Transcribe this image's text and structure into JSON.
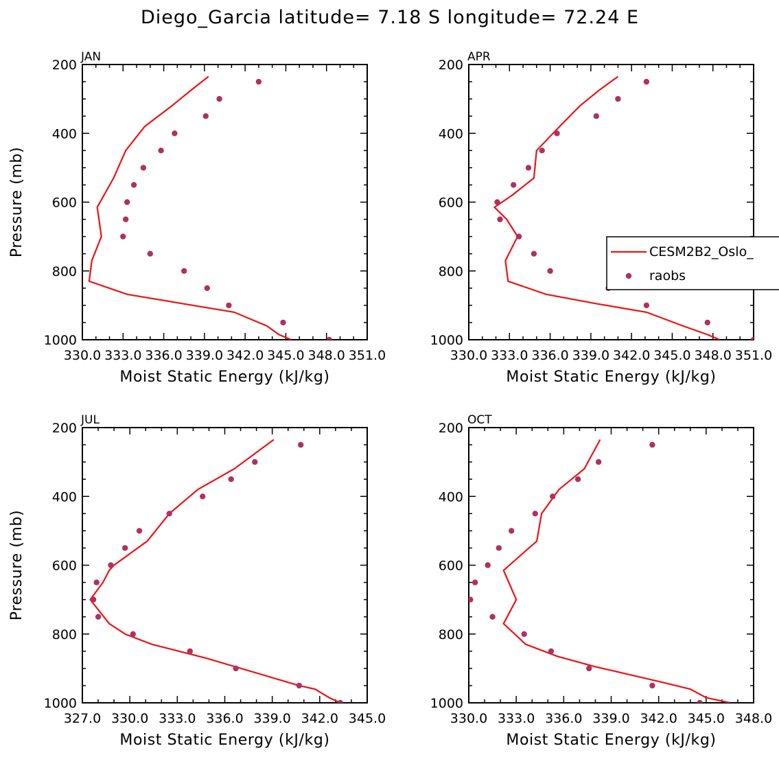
{
  "figure": {
    "title": "Diego_Garcia  latitude= 7.18 S longitude= 72.24 E"
  },
  "colors": {
    "model_line": "#ee1111",
    "obs_marker": "#b03060",
    "axis": "#000000",
    "background": "#ffffff"
  },
  "legend": {
    "model_label": "CESM2B2_Oslo_",
    "obs_label": "raobs",
    "panel": "APR",
    "placement": "right"
  },
  "chart_data": [
    {
      "type": "line",
      "panel": "JAN",
      "xlabel": "Moist Static Energy (kJ/kg)",
      "ylabel": "Pressure (mb)",
      "xlim": [
        330.0,
        351.0
      ],
      "xticks": [
        330.0,
        333.0,
        336.0,
        339.0,
        342.0,
        345.0,
        348.0,
        351.0
      ],
      "xtick_labels": [
        "330.0",
        "333.0",
        "336.0",
        "339.0",
        "342.0",
        "345.0",
        "348.0",
        "351.0"
      ],
      "ylim": [
        200,
        1000
      ],
      "yticks": [
        200,
        400,
        600,
        800,
        1000
      ],
      "ytick_labels": [
        "200",
        "400",
        "600",
        "800",
        "1000"
      ],
      "series": [
        {
          "name": "CESM2B2_Oslo_",
          "kind": "line",
          "x": [
            345.4,
            344.5,
            343.6,
            341.2,
            337.4,
            333.3,
            330.5,
            330.7,
            331.4,
            331.1,
            332.3,
            333.2,
            334.6,
            336.6,
            338.0,
            339.3
          ],
          "y": [
            1000,
            985,
            960,
            920,
            895,
            868,
            830,
            770,
            700,
            615,
            530,
            450,
            380,
            320,
            275,
            235
          ]
        },
        {
          "name": "raobs",
          "kind": "scatter",
          "x": [
            348.2,
            344.8,
            340.8,
            339.2,
            337.5,
            335.0,
            333.0,
            333.2,
            333.3,
            333.8,
            334.5,
            335.8,
            336.8,
            339.1,
            340.1,
            343.0
          ],
          "y": [
            1000,
            950,
            900,
            850,
            800,
            750,
            700,
            650,
            600,
            550,
            500,
            450,
            400,
            350,
            300,
            250
          ]
        }
      ]
    },
    {
      "type": "line",
      "panel": "APR",
      "xlabel": "Moist Static Energy (kJ/kg)",
      "ylabel": "",
      "xlim": [
        330.0,
        351.0
      ],
      "xticks": [
        330.0,
        333.0,
        336.0,
        339.0,
        342.0,
        345.0,
        348.0,
        351.0
      ],
      "xtick_labels": [
        "330.0",
        "333.0",
        "336.0",
        "339.0",
        "342.0",
        "345.0",
        "348.0",
        "351.0"
      ],
      "ylim": [
        200,
        1000
      ],
      "yticks": [
        200,
        400,
        600,
        800,
        1000
      ],
      "ytick_labels": [
        "200",
        "400",
        "600",
        "800",
        "1000"
      ],
      "series": [
        {
          "name": "CESM2B2_Oslo_",
          "kind": "line",
          "x": [
            348.5,
            347.6,
            345.8,
            343.1,
            339.4,
            335.7,
            332.9,
            332.7,
            333.6,
            332.8,
            331.9,
            333.2,
            334.8,
            335.0,
            336.7,
            338.2,
            339.6,
            341.0
          ],
          "y": [
            1000,
            985,
            960,
            920,
            895,
            868,
            830,
            770,
            700,
            650,
            615,
            580,
            530,
            450,
            380,
            320,
            275,
            235
          ]
        },
        {
          "name": "raobs",
          "kind": "scatter",
          "x": [
            351.0,
            347.6,
            343.1,
            340.3,
            336.0,
            334.8,
            333.7,
            332.3,
            332.1,
            333.3,
            334.4,
            335.4,
            336.5,
            339.4,
            341.0,
            343.1
          ],
          "y": [
            1000,
            950,
            900,
            850,
            800,
            750,
            700,
            650,
            600,
            550,
            500,
            450,
            400,
            350,
            300,
            250
          ]
        }
      ]
    },
    {
      "type": "line",
      "panel": "JUL",
      "xlabel": "Moist Static Energy (kJ/kg)",
      "ylabel": "Pressure (mb)",
      "xlim": [
        327.0,
        345.0
      ],
      "xticks": [
        327.0,
        330.0,
        333.0,
        336.0,
        339.0,
        342.0,
        345.0
      ],
      "xtick_labels": [
        "327.0",
        "330.0",
        "333.0",
        "336.0",
        "339.0",
        "342.0",
        "345.0"
      ],
      "ylim": [
        200,
        1000
      ],
      "yticks": [
        200,
        400,
        600,
        800,
        1000
      ],
      "ytick_labels": [
        "200",
        "400",
        "600",
        "800",
        "1000"
      ],
      "series": [
        {
          "name": "CESM2B2_Oslo_",
          "kind": "line",
          "x": [
            343.3,
            342.6,
            341.7,
            340.7,
            334.8,
            331.4,
            329.7,
            328.7,
            327.5,
            328.3,
            328.7,
            329.0,
            331.1,
            332.5,
            334.3,
            336.6,
            339.1
          ],
          "y": [
            1000,
            985,
            960,
            950,
            870,
            830,
            800,
            770,
            700,
            650,
            615,
            600,
            530,
            450,
            380,
            320,
            235
          ]
        },
        {
          "name": "raobs",
          "kind": "scatter",
          "x": [
            343.3,
            340.7,
            336.7,
            333.8,
            330.2,
            328.0,
            327.7,
            327.9,
            328.8,
            329.7,
            330.6,
            332.5,
            334.6,
            336.4,
            337.9,
            340.8
          ],
          "y": [
            1000,
            950,
            900,
            850,
            800,
            750,
            700,
            650,
            600,
            550,
            500,
            450,
            400,
            350,
            300,
            250
          ]
        }
      ]
    },
    {
      "type": "line",
      "panel": "OCT",
      "xlabel": "Moist Static Energy (kJ/kg)",
      "ylabel": "",
      "xlim": [
        330.0,
        348.0
      ],
      "xticks": [
        330.0,
        333.0,
        336.0,
        339.0,
        342.0,
        345.0,
        348.0
      ],
      "xtick_labels": [
        "330.0",
        "333.0",
        "336.0",
        "339.0",
        "342.0",
        "345.0",
        "348.0"
      ],
      "ylim": [
        200,
        1000
      ],
      "yticks": [
        200,
        400,
        600,
        800,
        1000
      ],
      "ytick_labels": [
        "200",
        "400",
        "600",
        "800",
        "1000"
      ],
      "series": [
        {
          "name": "CESM2B2_Oslo_",
          "kind": "line",
          "x": [
            346.5,
            345.0,
            344.0,
            342.2,
            338.0,
            335.6,
            333.6,
            332.2,
            333.0,
            332.2,
            334.3,
            334.6,
            335.7,
            337.3,
            338.3
          ],
          "y": [
            1000,
            985,
            960,
            940,
            895,
            865,
            830,
            770,
            700,
            615,
            530,
            450,
            380,
            320,
            235
          ]
        },
        {
          "name": "raobs",
          "kind": "scatter",
          "x": [
            344.6,
            341.6,
            337.6,
            335.2,
            333.5,
            331.5,
            330.1,
            330.4,
            331.2,
            331.9,
            332.7,
            334.2,
            335.3,
            336.9,
            338.2,
            341.6
          ],
          "y": [
            1000,
            950,
            900,
            850,
            800,
            750,
            700,
            650,
            600,
            550,
            500,
            450,
            400,
            350,
            300,
            250
          ]
        }
      ]
    }
  ]
}
